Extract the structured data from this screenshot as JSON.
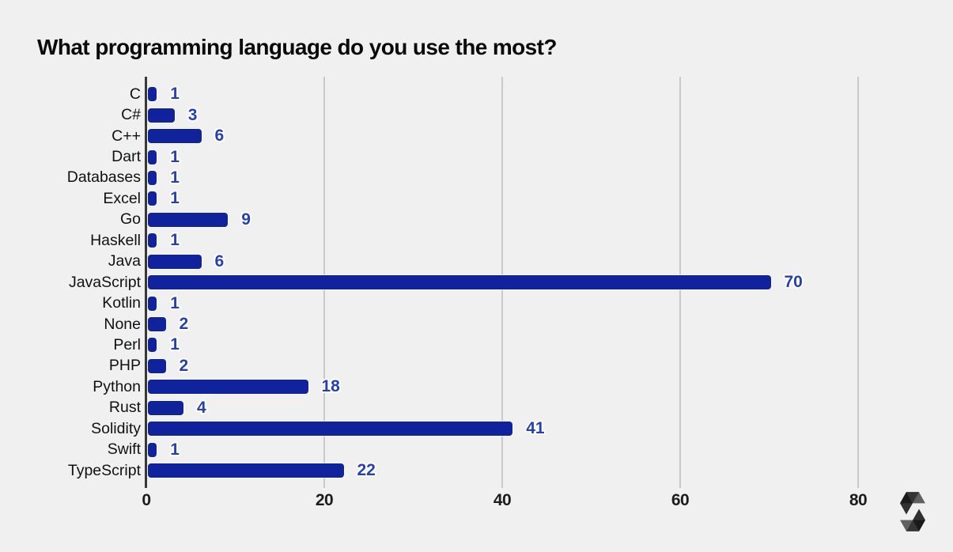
{
  "background_color": "#f0f0f0",
  "chart_data": {
    "type": "bar",
    "orientation": "horizontal",
    "title": "What programming language do you use the most?",
    "categories": [
      "C",
      "C#",
      "C++",
      "Dart",
      "Databases",
      "Excel",
      "Go",
      "Haskell",
      "Java",
      "JavaScript",
      "Kotlin",
      "None",
      "Perl",
      "PHP",
      "Python",
      "Rust",
      "Solidity",
      "Swift",
      "TypeScript"
    ],
    "values": [
      1,
      3,
      6,
      1,
      1,
      1,
      9,
      1,
      6,
      70,
      1,
      2,
      1,
      2,
      18,
      4,
      41,
      1,
      22
    ],
    "value_labels_shown": true,
    "xlabel": "",
    "ylabel": "",
    "x_ticks": [
      0,
      20,
      40,
      60,
      80
    ],
    "xlim": [
      0,
      85
    ],
    "grid": "vertical-only",
    "legend": "none",
    "bar_color": "#10239c",
    "value_label_color": "#2540b0",
    "axis_line_color": "#383838",
    "gridline_color": "#c9c9c9",
    "title_color": "#0a0a0a",
    "tick_label_color": "#1c1c1c",
    "category_label_color": "#111111"
  },
  "logo": {
    "name": "solidity-logo",
    "color": "#000000"
  }
}
